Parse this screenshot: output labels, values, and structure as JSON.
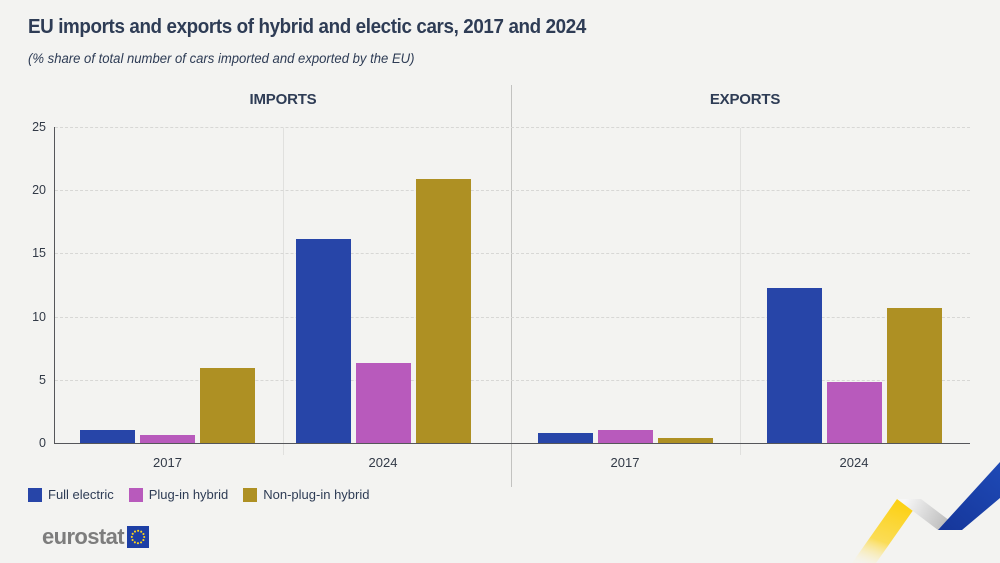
{
  "page": {
    "title": "EU imports and exports of hybrid and electic cars, 2017 and 2024",
    "subtitle": "(% share of total number of cars imported and exported by the EU)"
  },
  "chart_data": {
    "type": "bar",
    "unit": "% share",
    "ylim": [
      0,
      25
    ],
    "yticks": [
      0,
      5,
      10,
      15,
      20,
      25
    ],
    "grid": "horizontal dashed",
    "legend_position": "bottom-left",
    "panels": [
      {
        "title": "IMPORTS",
        "categories": [
          "2017",
          "2024"
        ],
        "series": [
          {
            "name": "Full electric",
            "color": "#2745a8",
            "values": [
              1.0,
              16.1
            ]
          },
          {
            "name": "Plug-in hybrid",
            "color": "#b85abc",
            "values": [
              0.6,
              6.3
            ]
          },
          {
            "name": "Non-plug-in hybrid",
            "color": "#ae9023",
            "values": [
              5.9,
              20.9
            ]
          }
        ]
      },
      {
        "title": "EXPORTS",
        "categories": [
          "2017",
          "2024"
        ],
        "series": [
          {
            "name": "Full electric",
            "color": "#2745a8",
            "values": [
              0.8,
              12.3
            ]
          },
          {
            "name": "Plug-in hybrid",
            "color": "#b85abc",
            "values": [
              1.0,
              4.8
            ]
          },
          {
            "name": "Non-plug-in hybrid",
            "color": "#ae9023",
            "values": [
              0.4,
              10.7
            ]
          }
        ]
      }
    ],
    "legend": [
      {
        "label": "Full electric",
        "color": "#2745a8"
      },
      {
        "label": "Plug-in hybrid",
        "color": "#b85abc"
      },
      {
        "label": "Non-plug-in hybrid",
        "color": "#ae9023"
      }
    ]
  },
  "footer": {
    "logo_text": "eurostat"
  },
  "colors": {
    "background": "#f3f3f1",
    "title_text": "#2e3c55",
    "axis_line": "#55565a",
    "gridline": "#d7d7d5",
    "full_electric": "#2745a8",
    "plug_in_hybrid": "#b85abc",
    "non_plug_in_hybrid": "#ae9023",
    "logo_gray": "#7d7d7d",
    "eu_flag_blue": "#1d3fa5",
    "eu_stars_yellow": "#ffd617",
    "ribbon_yellow": "#fcd116",
    "ribbon_blue": "#1c43ad",
    "ribbon_fold_gray": "#c4c4c4"
  }
}
